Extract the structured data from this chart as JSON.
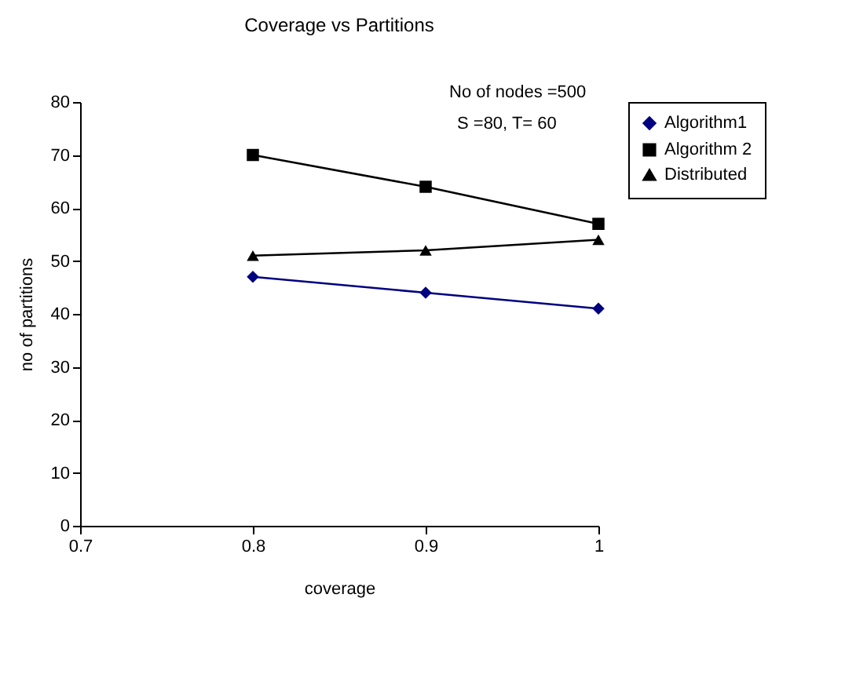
{
  "chart_data": {
    "type": "line",
    "title": "Coverage vs Partitions",
    "xlabel": "coverage",
    "ylabel": "no of partitions",
    "annotations": [
      "No of nodes =500",
      "S =80,  T= 60"
    ],
    "x": [
      0.8,
      0.9,
      1
    ],
    "series": [
      {
        "name": "Algorithm1",
        "color": "#000080",
        "marker": "diamond",
        "values": [
          47,
          44,
          41
        ]
      },
      {
        "name": "Algorithm 2",
        "color": "#000000",
        "marker": "square",
        "values": [
          70,
          64,
          57
        ]
      },
      {
        "name": "Distributed",
        "color": "#000000",
        "marker": "triangle",
        "values": [
          51,
          52,
          54
        ]
      }
    ],
    "xlim": [
      0.7,
      1
    ],
    "xticks": [
      0.7,
      0.8,
      0.9,
      1
    ],
    "ylim": [
      0,
      80
    ],
    "yticks": [
      0,
      10,
      20,
      30,
      40,
      50,
      60,
      70,
      80
    ],
    "grid": false,
    "legend": "right"
  }
}
